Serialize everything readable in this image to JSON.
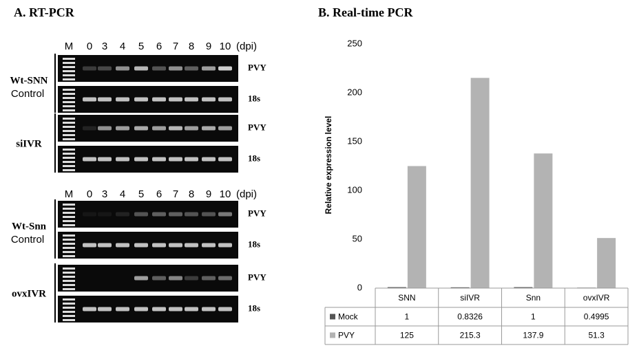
{
  "panel_a": {
    "title": "A. RT-PCR",
    "lanes": [
      "M",
      "0",
      "3",
      "4",
      "5",
      "6",
      "7",
      "8",
      "9",
      "10"
    ],
    "unit": "(dpi)",
    "groups": [
      {
        "name": "Wt-SNN",
        "sub": "Control"
      },
      {
        "name": "siIVR"
      },
      {
        "name": "Wt-Snn",
        "sub": "Control"
      },
      {
        "name": "ovxIVR"
      }
    ],
    "bands": [
      "PVY",
      "18s"
    ]
  },
  "chart_data": {
    "type": "bar",
    "title": "B. Real-time PCR",
    "y_label": "Relative expression level",
    "categories": [
      "SNN",
      "siIVR",
      "Snn",
      "ovxIVR"
    ],
    "series": [
      {
        "name": "Mock",
        "color": "#555555",
        "values": [
          1,
          0.8326,
          1,
          0.4995
        ]
      },
      {
        "name": "PVY",
        "color": "#b3b3b3",
        "values": [
          125,
          215.3,
          137.9,
          51.3
        ]
      }
    ],
    "ylim": [
      0,
      250
    ],
    "yticks": [
      0,
      50,
      100,
      150,
      200,
      250
    ],
    "grid": false
  }
}
